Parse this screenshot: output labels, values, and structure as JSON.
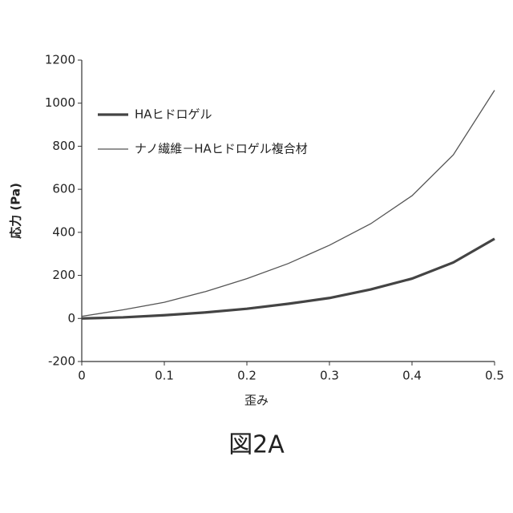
{
  "chart_data": {
    "type": "line",
    "xlabel": "歪み",
    "ylabel": "応力 (Pa)",
    "x": [
      0,
      0.05,
      0.1,
      0.15,
      0.2,
      0.25,
      0.3,
      0.35,
      0.4,
      0.45,
      0.5
    ],
    "series": [
      {
        "name": "HAヒドロゲル",
        "color": "#444444",
        "values": [
          0,
          5,
          15,
          28,
          45,
          68,
          95,
          135,
          185,
          260,
          370
        ]
      },
      {
        "name": "ナノ繊維－HAヒドロゲル複合材",
        "color": "#555555",
        "values": [
          10,
          40,
          75,
          125,
          185,
          255,
          340,
          440,
          570,
          760,
          1060
        ]
      }
    ],
    "xlim": [
      0,
      0.5
    ],
    "xticks": [
      0,
      0.1,
      0.2,
      0.3,
      0.4,
      0.5
    ],
    "ylim": [
      -200,
      1200
    ],
    "yticks": [
      -200,
      0,
      200,
      400,
      600,
      800,
      1000,
      1200
    ],
    "legend": "upper-left"
  },
  "figure_label": "図2A"
}
